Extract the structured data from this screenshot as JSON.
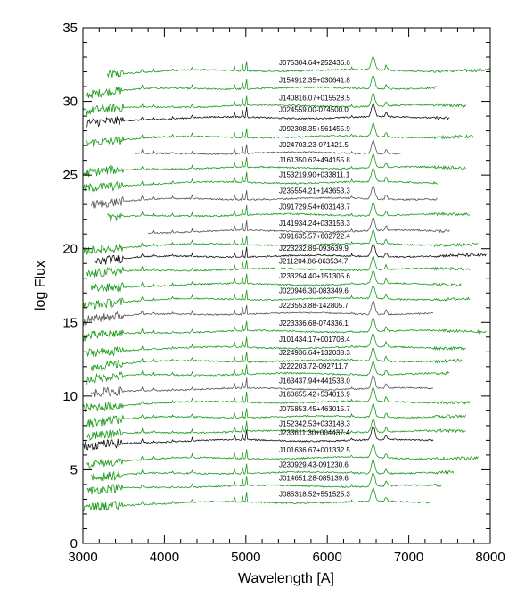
{
  "chart_data": {
    "type": "line",
    "title": "",
    "xlabel": "Wavelength [A]",
    "ylabel": "log Flux",
    "xlim": [
      3000,
      8000
    ],
    "ylim": [
      0,
      35
    ],
    "xticks": [
      3000,
      4000,
      5000,
      6000,
      7000,
      8000
    ],
    "yticks": [
      0,
      5,
      10,
      15,
      20,
      25,
      30,
      35
    ],
    "grid": false,
    "legend": "none",
    "colors": {
      "green": "#1a9a1a",
      "gray": "#555555",
      "black": "#111111"
    },
    "series": [
      {
        "name": "J075304.64+252436.6",
        "offset": 32.1,
        "xstart": 3300,
        "xend": 8000,
        "color": "green"
      },
      {
        "name": "J154912.35+030641.8",
        "offset": 30.9,
        "xstart": 3050,
        "xend": 7350,
        "color": "green"
      },
      {
        "name": "J140816.07+015528.5",
        "offset": 29.7,
        "xstart": 3000,
        "xend": 7700,
        "color": "green"
      },
      {
        "name": "J024559.00-074500.0",
        "offset": 28.9,
        "xstart": 3050,
        "xend": 7500,
        "color": "black"
      },
      {
        "name": "J092308.35+561455.9",
        "offset": 27.6,
        "xstart": 3050,
        "xend": 7800,
        "color": "green"
      },
      {
        "name": "J024703.23-071421.5",
        "offset": 26.5,
        "xstart": 3650,
        "xend": 6900,
        "color": "gray"
      },
      {
        "name": "J161350.62+494155.8",
        "offset": 25.5,
        "xstart": 3000,
        "xend": 7700,
        "color": "green"
      },
      {
        "name": "J153219.90+033811.1",
        "offset": 24.5,
        "xstart": 3000,
        "xend": 7350,
        "color": "green"
      },
      {
        "name": "J235554.21+143653.3",
        "offset": 23.4,
        "xstart": 3100,
        "xend": 7350,
        "color": "gray"
      },
      {
        "name": "J091729.54+603143.7",
        "offset": 22.3,
        "xstart": 3300,
        "xend": 7750,
        "color": "green"
      },
      {
        "name": "J141934.24+033153.3",
        "offset": 21.2,
        "xstart": 3800,
        "xend": 7500,
        "color": "gray"
      },
      {
        "name": "J091635.57+602722.4",
        "offset": 20.3,
        "xstart": 3000,
        "xend": 7850,
        "color": "green"
      },
      {
        "name": "J223232.89-093639.9",
        "offset": 19.5,
        "xstart": 3150,
        "xend": 7950,
        "color": "black"
      },
      {
        "name": "J211204.86-063534.7",
        "offset": 18.6,
        "xstart": 3050,
        "xend": 7750,
        "color": "green"
      },
      {
        "name": "J233254.40+151305.6",
        "offset": 17.6,
        "xstart": 3100,
        "xend": 7650,
        "color": "green"
      },
      {
        "name": "J020946.30-083349.6",
        "offset": 16.6,
        "xstart": 3000,
        "xend": 7750,
        "color": "green"
      },
      {
        "name": "J223553.88-142805.7",
        "offset": 15.6,
        "xstart": 3000,
        "xend": 7300,
        "color": "gray"
      },
      {
        "name": "J223336.68-074336.1",
        "offset": 14.4,
        "xstart": 3000,
        "xend": 7950,
        "color": "green"
      },
      {
        "name": "J101434.17+001708.4",
        "offset": 13.3,
        "xstart": 3050,
        "xend": 7700,
        "color": "green"
      },
      {
        "name": "J224936.64+132038.3",
        "offset": 12.4,
        "xstart": 3100,
        "xend": 7650,
        "color": "green"
      },
      {
        "name": "J222203.72-092711.7",
        "offset": 11.5,
        "xstart": 3050,
        "xend": 7500,
        "color": "green"
      },
      {
        "name": "J163437.94+441533.0",
        "offset": 10.5,
        "xstart": 3100,
        "xend": 7300,
        "color": "gray"
      },
      {
        "name": "J160655.42+534016.9",
        "offset": 9.6,
        "xstart": 3000,
        "xend": 7750,
        "color": "green"
      },
      {
        "name": "J075853.45+463015.7",
        "offset": 8.6,
        "xstart": 3050,
        "xend": 7700,
        "color": "green"
      },
      {
        "name": "J152342.53+033148.3",
        "offset": 7.6,
        "xstart": 3050,
        "xend": 7700,
        "color": "green"
      },
      {
        "name": "J233611.30+004437.4",
        "offset": 7.0,
        "xstart": 3000,
        "xend": 7300,
        "color": "black"
      },
      {
        "name": "J101636.67+001332.5",
        "offset": 5.8,
        "xstart": 3050,
        "xend": 7850,
        "color": "green"
      },
      {
        "name": "J230929.43-091230.6",
        "offset": 4.8,
        "xstart": 3100,
        "xend": 7550,
        "color": "green"
      },
      {
        "name": "J014651.28-085139.6",
        "offset": 3.9,
        "xstart": 3050,
        "xend": 7400,
        "color": "green"
      },
      {
        "name": "J085318.52+551525.3",
        "offset": 2.8,
        "xstart": 3000,
        "xend": 7250,
        "color": "green"
      }
    ]
  }
}
